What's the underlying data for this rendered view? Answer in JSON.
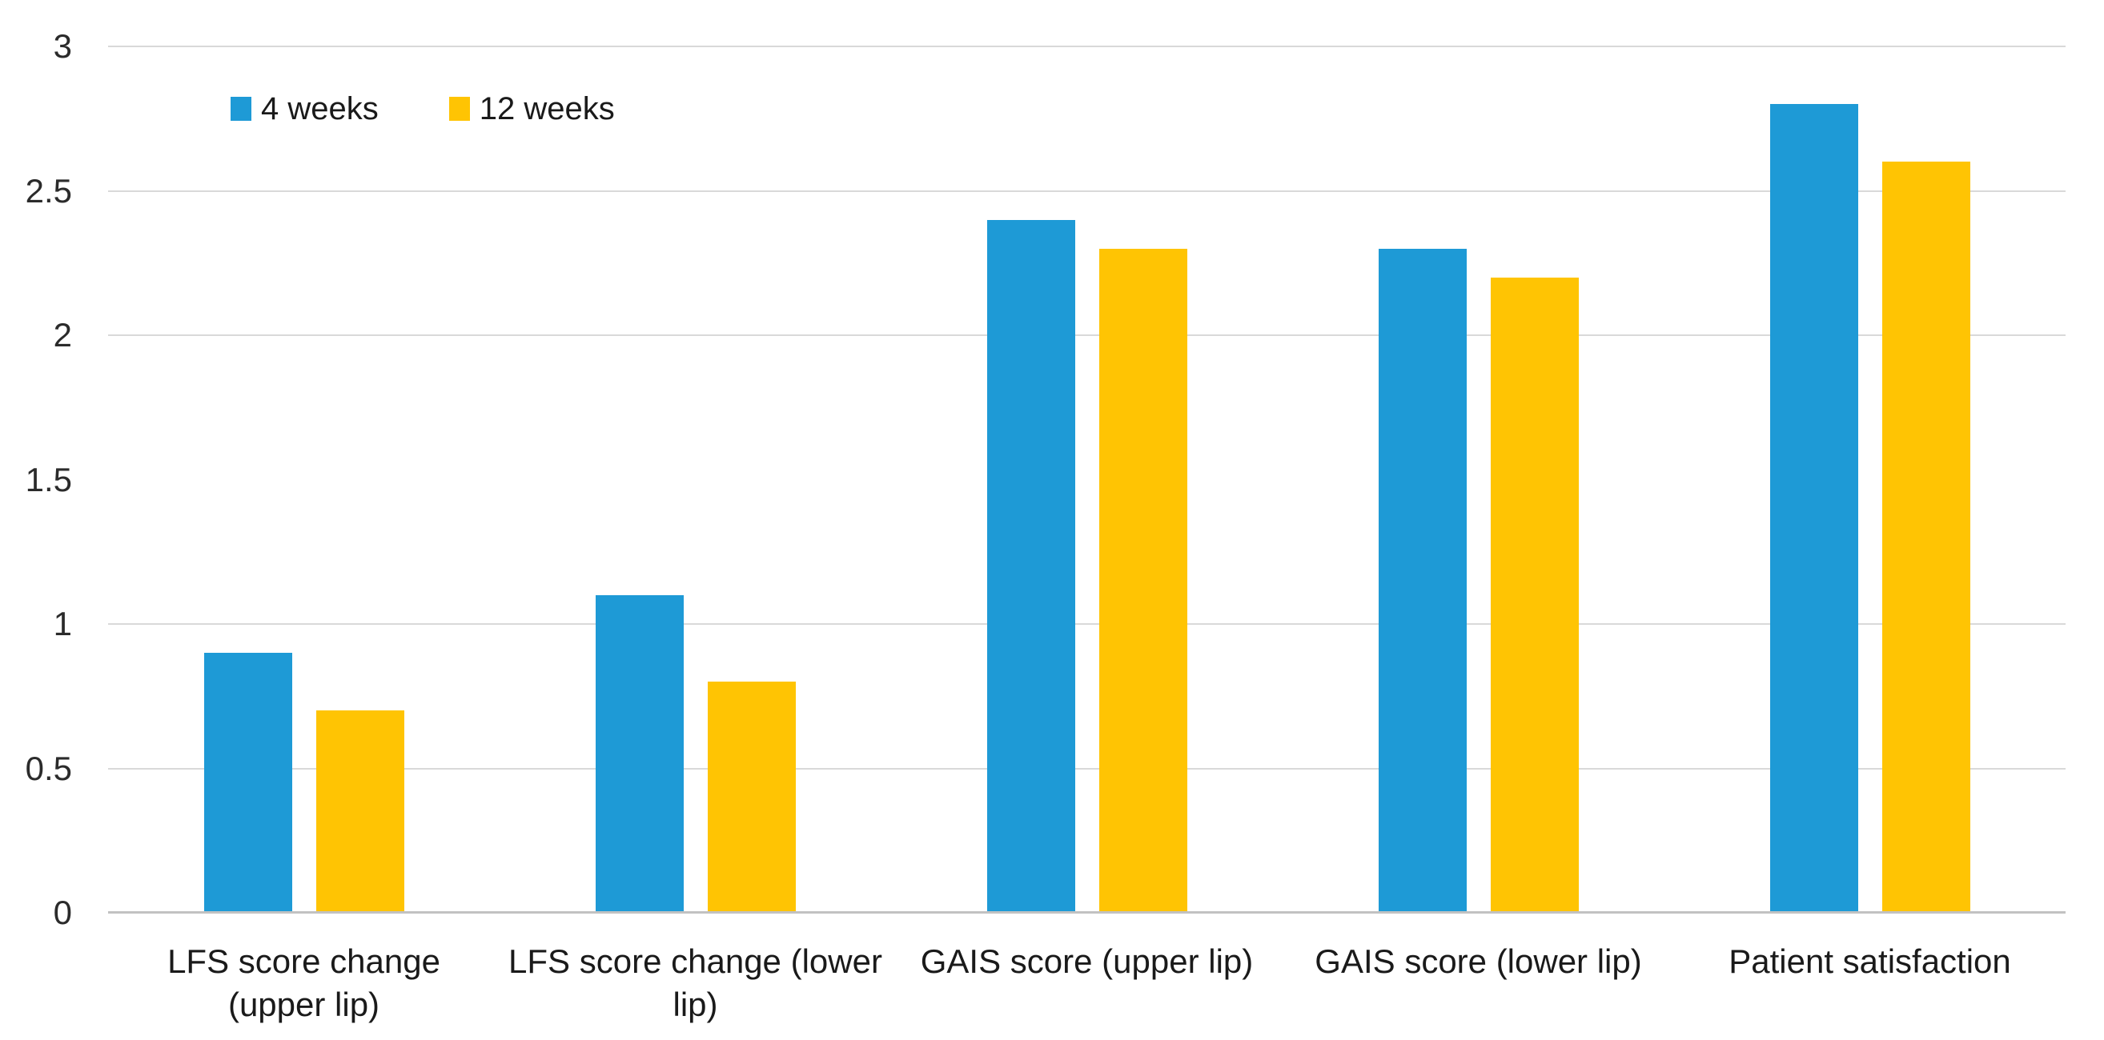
{
  "chart_data": {
    "type": "bar",
    "title": "",
    "xlabel": "",
    "ylabel": "",
    "categories": [
      "LFS score change (upper lip)",
      "LFS score change (lower lip)",
      "GAIS score (upper lip)",
      "GAIS score (lower lip)",
      "Patient satisfaction"
    ],
    "series": [
      {
        "name": "4 weeks",
        "color": "#1E9AD6",
        "values": [
          0.9,
          1.1,
          2.4,
          2.3,
          2.8
        ]
      },
      {
        "name": "12 weeks",
        "color": "#FFC403",
        "values": [
          0.7,
          0.8,
          2.3,
          2.2,
          2.6
        ]
      }
    ],
    "ylim": [
      0,
      3
    ],
    "ytick_values": [
      0,
      0.5,
      1,
      1.5,
      2,
      2.5,
      3
    ],
    "ytick_labels": [
      "0",
      "0.5",
      "1",
      "1.5",
      "2",
      "2.5",
      "3"
    ],
    "gridline_values": [
      0.5,
      1,
      2,
      2.5,
      3
    ],
    "grid": true,
    "legend_position": "top-left",
    "colors": {
      "gridline": "#D9D9D9",
      "axis_line": "#C2C2C2",
      "tick_text": "#2B2B2B",
      "label_text": "#1A1A1A",
      "background": "#FFFFFF"
    }
  }
}
